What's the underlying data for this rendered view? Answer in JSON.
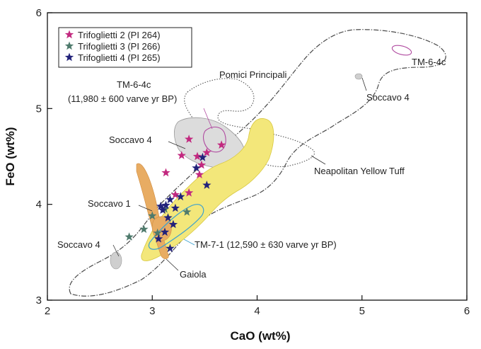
{
  "chart_data": {
    "type": "scatter",
    "xlabel": "CaO (wt%)",
    "ylabel": "FeO (wt%)",
    "xlim": [
      2,
      6
    ],
    "ylim": [
      3,
      6
    ],
    "xticks": [
      "2",
      "3",
      "4",
      "5",
      "6"
    ],
    "yticks": [
      "3",
      "4",
      "5",
      "6"
    ],
    "legend_position": "top-left",
    "series": [
      {
        "name": "Trifoglietti 2 (PI 264)",
        "color": "#c2297f",
        "marker": "star",
        "points": [
          [
            3.13,
            4.33
          ],
          [
            3.28,
            4.51
          ],
          [
            3.35,
            4.68
          ],
          [
            3.43,
            4.5
          ],
          [
            3.47,
            4.41
          ],
          [
            3.52,
            4.54
          ],
          [
            3.66,
            4.62
          ],
          [
            3.45,
            4.31
          ],
          [
            3.35,
            4.12
          ],
          [
            3.22,
            4.1
          ]
        ]
      },
      {
        "name": "Trifoglietti 3 (PI 266)",
        "color": "#4e7a6c",
        "marker": "star",
        "points": [
          [
            2.78,
            3.66
          ],
          [
            2.92,
            3.74
          ],
          [
            3.0,
            3.88
          ],
          [
            3.12,
            3.95
          ],
          [
            3.05,
            3.7
          ],
          [
            3.33,
            3.92
          ]
        ]
      },
      {
        "name": "Trifoglietti 4 (PI 265)",
        "color": "#22227a",
        "marker": "star",
        "points": [
          [
            3.08,
            3.98
          ],
          [
            3.1,
            3.94
          ],
          [
            3.13,
            3.99
          ],
          [
            3.17,
            4.05
          ],
          [
            3.22,
            3.96
          ],
          [
            3.27,
            4.08
          ],
          [
            3.15,
            3.86
          ],
          [
            3.2,
            3.79
          ],
          [
            3.06,
            3.64
          ],
          [
            3.12,
            3.71
          ],
          [
            3.17,
            3.54
          ],
          [
            3.48,
            4.49
          ],
          [
            3.52,
            4.2
          ],
          [
            3.42,
            4.38
          ]
        ]
      }
    ],
    "annotations": [
      {
        "text": "TM-6-4c",
        "color": "#b04aa0"
      },
      {
        "text": "Pomici Principali",
        "color": "#222222"
      },
      {
        "text": "Soccavo 4",
        "color": "#222222"
      },
      {
        "text": "TM-6-4c",
        "color": "#b04aa0"
      },
      {
        "text": "(11,980 ± 600 varve yr BP)",
        "color": "#b04aa0"
      },
      {
        "text": "Soccavo 4",
        "color": "#222222"
      },
      {
        "text": "Neapolitan Yellow Tuff",
        "color": "#222222"
      },
      {
        "text": "Soccavo 1",
        "color": "#222222"
      },
      {
        "text": "TM-7-1 (12,590 ± 630 varve yr BP)",
        "color": "#3aa0d0"
      },
      {
        "text": "Soccavo 4",
        "color": "#222222"
      },
      {
        "text": "Gaiola",
        "color": "#222222"
      }
    ]
  }
}
